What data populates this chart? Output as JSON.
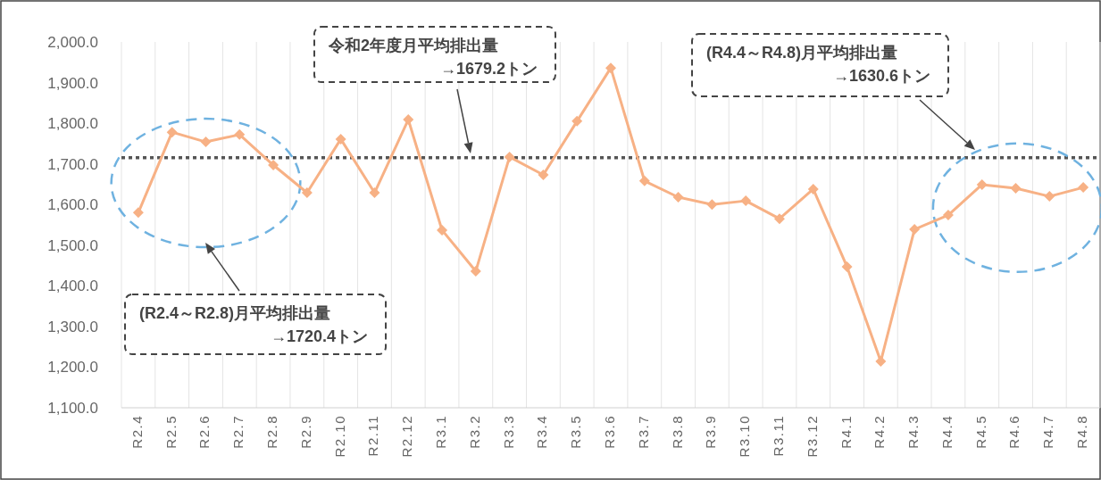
{
  "chart_data": {
    "type": "line",
    "categories": [
      "R2.4",
      "R2.5",
      "R2.6",
      "R2.7",
      "R2.8",
      "R2.9",
      "R2.10",
      "R2.11",
      "R2.12",
      "R3.1",
      "R3.2",
      "R3.3",
      "R3.4",
      "R3.5",
      "R3.6",
      "R3.7",
      "R3.8",
      "R3.9",
      "R3.10",
      "R3.11",
      "R3.12",
      "R4.1",
      "R4.2",
      "R4.3",
      "R4.4",
      "R4.5",
      "R4.6",
      "R4.7",
      "R4.8"
    ],
    "series": [
      {
        "color": "#f7b185",
        "values": [
          1580,
          1778,
          1754,
          1772,
          1697,
          1629,
          1761,
          1629,
          1809,
          1537,
          1436,
          1717,
          1673,
          1805,
          1936,
          1658,
          1618,
          1600,
          1609,
          1565,
          1638,
          1447,
          1214,
          1539,
          1574,
          1649,
          1640,
          1620,
          1642
        ]
      }
    ],
    "ylim": [
      1100,
      2000
    ],
    "yticks": [
      {
        "value": 1100,
        "label": "1,100.0"
      },
      {
        "value": 1200,
        "label": "1,200.0"
      },
      {
        "value": 1300,
        "label": "1,300.0"
      },
      {
        "value": 1400,
        "label": "1,400.0"
      },
      {
        "value": 1500,
        "label": "1,500.0"
      },
      {
        "value": 1600,
        "label": "1,600.0"
      },
      {
        "value": 1700,
        "label": "1,700.0"
      },
      {
        "value": 1800,
        "label": "1,800.0"
      },
      {
        "value": 1900,
        "label": "1,900.0"
      },
      {
        "value": 2000,
        "label": "2,000.0"
      }
    ],
    "ref_lines": [
      {
        "axis": "y",
        "value": 1715,
        "color": "#555555",
        "line_style": "dotted"
      }
    ],
    "annotations": [
      "令和2年度月平均排出量\n→1679.2トン",
      "(R4.4～R4.8)月平均排出量\n→1630.6トン",
      "(R2.4～R2.8)月平均排出量\n→1720.4トン"
    ],
    "grid": "x",
    "marker": "diamond",
    "line_style": "solid"
  }
}
